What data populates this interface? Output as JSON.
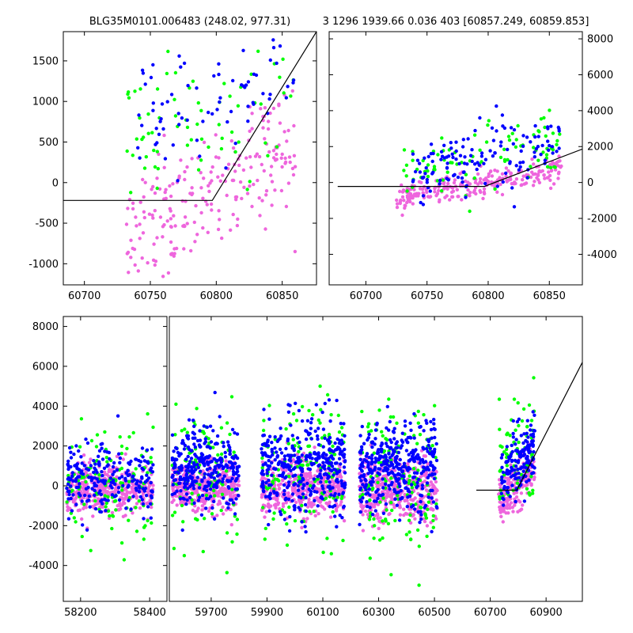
{
  "title_left": "BLG35M0101.006483 (248.02, 977.31)",
  "title_right": "3 1296 1939.66 0.036 403 [60857.249, 60859.853]",
  "colors": {
    "green": "#00ff00",
    "blue": "#0000ff",
    "pink": "#ee66dd",
    "line": "#000000"
  },
  "chart_data": [
    {
      "id": "top-left",
      "type": "scatter",
      "xlim": [
        60684,
        60876
      ],
      "ylim": [
        -1260,
        1860
      ],
      "xticks": [
        60700,
        60750,
        60800,
        60850
      ],
      "yticks": [
        -1000,
        -500,
        0,
        500,
        1000,
        1500
      ],
      "ytick_side": "left",
      "model_line": {
        "x": [
          60684,
          60797,
          60876
        ],
        "y": [
          -220,
          -220,
          1860
        ]
      },
      "clusters": [
        {
          "series": "pink",
          "x": [
            60730,
            60860
          ],
          "ymean": -150,
          "ysd": 350,
          "slope": 9,
          "n": 230
        },
        {
          "series": "green",
          "x": [
            60730,
            60860
          ],
          "ymean": 850,
          "ysd": 450,
          "slope": 4,
          "n": 70
        },
        {
          "series": "blue",
          "x": [
            60740,
            60860
          ],
          "ymean": 1100,
          "ysd": 400,
          "slope": 3,
          "n": 80
        }
      ]
    },
    {
      "id": "top-right",
      "type": "scatter",
      "xlim": [
        60670,
        60877
      ],
      "ylim": [
        -5700,
        8400
      ],
      "xticks": [
        60700,
        60750,
        60800,
        60850
      ],
      "yticks": [
        -4000,
        -2000,
        0,
        2000,
        4000,
        6000,
        8000
      ],
      "ytick_side": "right",
      "model_line": {
        "x": [
          60677,
          60797,
          60877
        ],
        "y": [
          -220,
          -220,
          1860
        ]
      },
      "clusters": [
        {
          "series": "pink",
          "x": [
            60725,
            60860
          ],
          "ymean": -100,
          "ysd": 400,
          "slope": 12,
          "n": 260
        },
        {
          "series": "green",
          "x": [
            60730,
            60860
          ],
          "ymean": 1200,
          "ysd": 900,
          "slope": 10,
          "n": 90
        },
        {
          "series": "blue",
          "x": [
            60735,
            60860
          ],
          "ymean": 1300,
          "ysd": 900,
          "slope": 14,
          "n": 140
        }
      ]
    },
    {
      "id": "bottom-left",
      "type": "scatter",
      "xlim": [
        58150,
        58450
      ],
      "ylim": [
        -5800,
        8500
      ],
      "xticks": [
        58200,
        58400
      ],
      "yticks": [
        -4000,
        -2000,
        0,
        2000,
        4000,
        6000,
        8000
      ],
      "ytick_side": "left",
      "clusters": [
        {
          "series": "pink",
          "x": [
            58160,
            58410
          ],
          "ymean": -100,
          "ysd": 600,
          "slope": 0,
          "n": 420
        },
        {
          "series": "green",
          "x": [
            58160,
            58410
          ],
          "ymean": 200,
          "ysd": 1300,
          "slope": 0,
          "n": 120
        },
        {
          "series": "blue",
          "x": [
            58160,
            58410
          ],
          "ymean": 300,
          "ysd": 900,
          "slope": 0,
          "n": 220
        }
      ]
    },
    {
      "id": "bottom-right",
      "type": "scatter",
      "xlim": [
        59550,
        61030
      ],
      "ylim": [
        -5800,
        8500
      ],
      "xticks": [
        59700,
        59900,
        60100,
        60300,
        60500,
        60700,
        60900
      ],
      "yticks": [],
      "model_line": {
        "x": [
          60650,
          60795,
          61030
        ],
        "y": [
          -220,
          -220,
          6200
        ]
      },
      "clusters": [
        {
          "series": "pink",
          "x": [
            59560,
            59800
          ],
          "ymean": -100,
          "ysd": 600,
          "slope": 0,
          "n": 380
        },
        {
          "series": "green",
          "x": [
            59560,
            59800
          ],
          "ymean": 500,
          "ysd": 1600,
          "slope": 0,
          "n": 110
        },
        {
          "series": "blue",
          "x": [
            59560,
            59800
          ],
          "ymean": 900,
          "ysd": 1000,
          "slope": 0,
          "n": 300
        },
        {
          "series": "pink",
          "x": [
            59880,
            60180
          ],
          "ymean": -150,
          "ysd": 700,
          "slope": 0,
          "n": 420
        },
        {
          "series": "green",
          "x": [
            59880,
            60180
          ],
          "ymean": 600,
          "ysd": 1700,
          "slope": 0,
          "n": 140
        },
        {
          "series": "blue",
          "x": [
            59880,
            60180
          ],
          "ymean": 1000,
          "ysd": 1200,
          "slope": 0,
          "n": 380
        },
        {
          "series": "pink",
          "x": [
            60230,
            60510
          ],
          "ymean": -200,
          "ysd": 800,
          "slope": 0,
          "n": 420
        },
        {
          "series": "green",
          "x": [
            60230,
            60510
          ],
          "ymean": 300,
          "ysd": 1800,
          "slope": 0,
          "n": 140
        },
        {
          "series": "blue",
          "x": [
            60230,
            60510
          ],
          "ymean": 900,
          "ysd": 1100,
          "slope": 0,
          "n": 380
        },
        {
          "series": "pink",
          "x": [
            60730,
            60860
          ],
          "ymean": 50,
          "ysd": 600,
          "slope": 14,
          "n": 180
        },
        {
          "series": "green",
          "x": [
            60730,
            60860
          ],
          "ymean": 1400,
          "ysd": 1400,
          "slope": 6,
          "n": 70
        },
        {
          "series": "blue",
          "x": [
            60740,
            60860
          ],
          "ymean": 1300,
          "ysd": 900,
          "slope": 16,
          "n": 160
        }
      ]
    }
  ]
}
